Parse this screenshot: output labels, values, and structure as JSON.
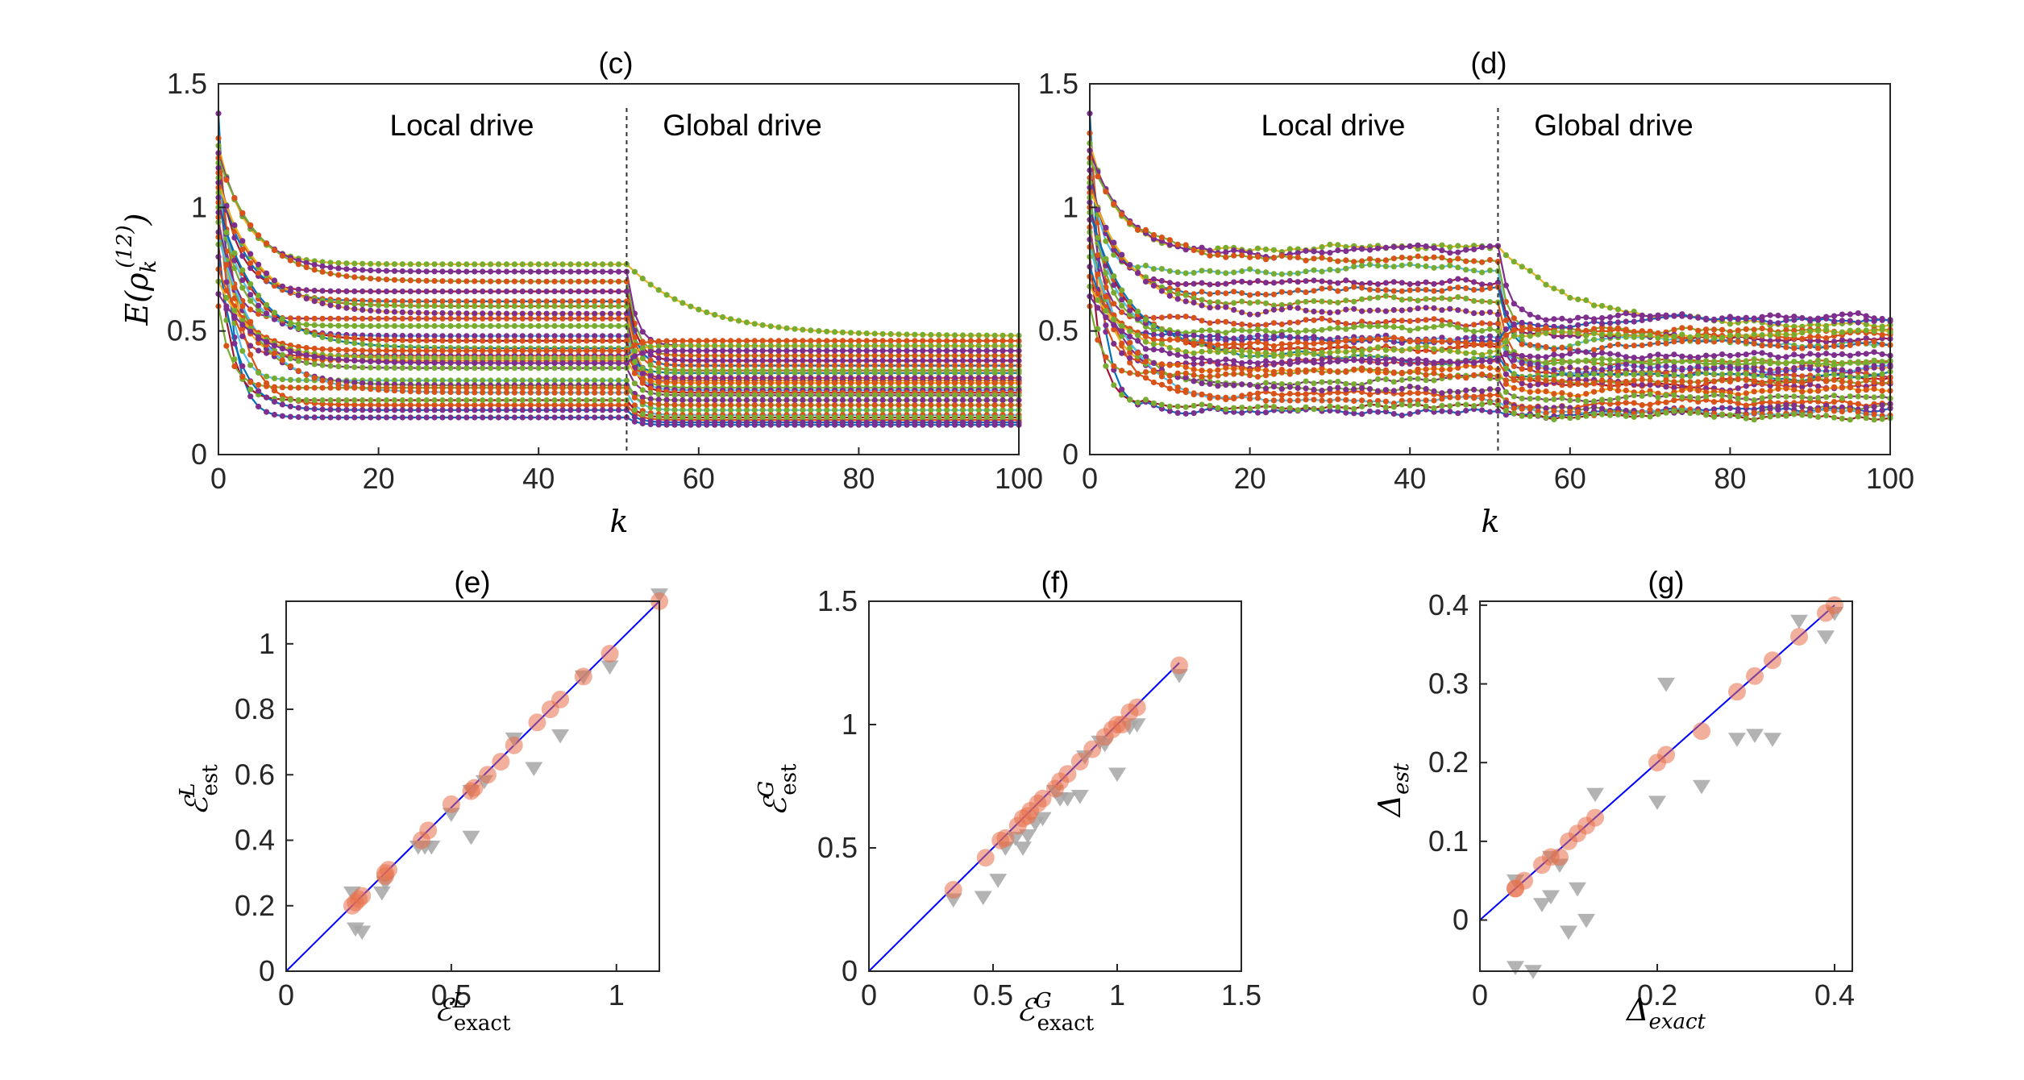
{
  "figure": {
    "panels_top": [
      {
        "id": "c",
        "title": "(c)",
        "ylabel_main": "E(ρ",
        "ylabel_sub": "k",
        "ylabel_sup": "(12)",
        "ylabel_close": ")",
        "xlabel": "k",
        "xlim": [
          0,
          100
        ],
        "ylim": [
          0,
          1.5
        ],
        "xticks": [
          "0",
          "20",
          "40",
          "60",
          "80",
          "100"
        ],
        "yticks": [
          "0",
          "0.5",
          "1",
          "1.5"
        ],
        "annotation_left": "Local drive",
        "annotation_right": "Global drive",
        "divider_at": 51
      },
      {
        "id": "d",
        "title": "(d)",
        "xlabel": "k",
        "xlim": [
          0,
          100
        ],
        "ylim": [
          0,
          1.5
        ],
        "xticks": [
          "0",
          "20",
          "40",
          "60",
          "80",
          "100"
        ],
        "yticks": [
          "0",
          "0.5",
          "1",
          "1.5"
        ],
        "annotation_left": "Local drive",
        "annotation_right": "Global drive",
        "divider_at": 51
      }
    ],
    "panels_bottom": [
      {
        "id": "e",
        "title": "(e)",
        "xlabel_main": "ℰ",
        "xlabel_sup": "L",
        "xlabel_sub": "exact",
        "ylabel_main": "ℰ",
        "ylabel_sup": "L",
        "ylabel_sub": "est",
        "xticks": [
          "0",
          "0.5",
          "1"
        ],
        "yticks": [
          "0",
          "0.2",
          "0.4",
          "0.6",
          "0.8",
          "1"
        ]
      },
      {
        "id": "f",
        "title": "(f)",
        "xlabel_main": "ℰ",
        "xlabel_sup": "G",
        "xlabel_sub": "exact",
        "ylabel_main": "ℰ",
        "ylabel_sup": "G",
        "ylabel_sub": "est",
        "xticks": [
          "0",
          "0.5",
          "1",
          "1.5"
        ],
        "yticks": [
          "0",
          "0.5",
          "1",
          "1.5"
        ]
      },
      {
        "id": "g",
        "title": "(g)",
        "xlabel_main": "Δ",
        "xlabel_sub": "exact",
        "ylabel_main": "Δ",
        "ylabel_sub": "est",
        "xticks": [
          "0",
          "0.2",
          "0.4"
        ],
        "yticks": [
          "0",
          "0.1",
          "0.2",
          "0.3",
          "0.4"
        ]
      }
    ]
  },
  "chart_data": [
    {
      "id": "c",
      "type": "line",
      "title": "(c)",
      "xlabel": "k",
      "ylabel": "E(ρ_k^(12))",
      "xlim": [
        0,
        100
      ],
      "ylim": [
        0,
        1.5
      ],
      "x_range": [
        0,
        100
      ],
      "break_at": 51,
      "legend": "none",
      "colors": [
        "#0072BD",
        "#D95319",
        "#EDB120",
        "#7E2F8E",
        "#77AC30",
        "#4DBEEE",
        "#A2142F"
      ],
      "series": [
        {
          "start": 1.38,
          "local": 0.15,
          "global": 0.12
        },
        {
          "start": 1.28,
          "local": 0.2,
          "global": 0.14
        },
        {
          "start": 1.25,
          "local": 0.77,
          "global": 0.48,
          "late_drop": true
        },
        {
          "start": 1.22,
          "local": 0.74,
          "global": 0.44
        },
        {
          "start": 1.2,
          "local": 0.7,
          "global": 0.4
        },
        {
          "start": 1.18,
          "local": 0.3,
          "global": 0.18
        },
        {
          "start": 1.16,
          "local": 0.66,
          "global": 0.38
        },
        {
          "start": 1.14,
          "local": 0.62,
          "global": 0.36
        },
        {
          "start": 1.12,
          "local": 0.6,
          "global": 0.34
        },
        {
          "start": 1.1,
          "local": 0.57,
          "global": 0.3
        },
        {
          "start": 1.08,
          "local": 0.55,
          "global": 0.29
        },
        {
          "start": 1.06,
          "local": 0.52,
          "global": 0.27
        },
        {
          "start": 1.04,
          "local": 0.48,
          "global": 0.26
        },
        {
          "start": 1.02,
          "local": 0.46,
          "global": 0.25
        },
        {
          "start": 1.0,
          "local": 0.43,
          "global": 0.33
        },
        {
          "start": 0.98,
          "local": 0.4,
          "global": 0.31
        },
        {
          "start": 0.96,
          "local": 0.38,
          "global": 0.29
        },
        {
          "start": 0.94,
          "local": 0.35,
          "global": 0.24
        },
        {
          "start": 0.9,
          "local": 0.28,
          "global": 0.22
        },
        {
          "start": 0.88,
          "local": 0.25,
          "global": 0.16
        },
        {
          "start": 0.85,
          "local": 0.22,
          "global": 0.15
        },
        {
          "start": 0.8,
          "local": 0.18,
          "global": 0.13
        },
        {
          "start": 0.75,
          "local": 0.42,
          "global": 0.46
        },
        {
          "start": 0.7,
          "local": 0.39,
          "global": 0.44
        },
        {
          "start": 0.65,
          "local": 0.37,
          "global": 0.42
        },
        {
          "start": 0.6,
          "local": 0.27,
          "global": 0.2
        }
      ]
    },
    {
      "id": "d",
      "type": "line",
      "title": "(d)",
      "xlabel": "k",
      "ylabel": "",
      "xlim": [
        0,
        100
      ],
      "ylim": [
        0,
        1.5
      ],
      "x_range": [
        0,
        100
      ],
      "break_at": 51,
      "noise": 0.02,
      "legend": "none",
      "colors": [
        "#0072BD",
        "#D95319",
        "#EDB120",
        "#7E2F8E",
        "#77AC30",
        "#4DBEEE",
        "#A2142F"
      ],
      "series": [
        {
          "start": 1.38,
          "local": 0.18,
          "global": 0.17
        },
        {
          "start": 1.3,
          "local": 0.24,
          "global": 0.2
        },
        {
          "start": 1.26,
          "local": 0.84,
          "global": 0.52,
          "late_drop": true
        },
        {
          "start": 1.23,
          "local": 0.82,
          "global": 0.56
        },
        {
          "start": 1.2,
          "local": 0.78,
          "global": 0.5
        },
        {
          "start": 1.18,
          "local": 0.75,
          "global": 0.45
        },
        {
          "start": 1.15,
          "local": 0.7,
          "global": 0.47
        },
        {
          "start": 1.12,
          "local": 0.66,
          "global": 0.44
        },
        {
          "start": 1.1,
          "local": 0.62,
          "global": 0.38
        },
        {
          "start": 1.08,
          "local": 0.58,
          "global": 0.35
        },
        {
          "start": 1.06,
          "local": 0.54,
          "global": 0.33
        },
        {
          "start": 1.04,
          "local": 0.5,
          "global": 0.37
        },
        {
          "start": 1.02,
          "local": 0.46,
          "global": 0.34
        },
        {
          "start": 1.0,
          "local": 0.43,
          "global": 0.3
        },
        {
          "start": 0.98,
          "local": 0.4,
          "global": 0.32
        },
        {
          "start": 0.95,
          "local": 0.37,
          "global": 0.28
        },
        {
          "start": 0.92,
          "local": 0.34,
          "global": 0.25
        },
        {
          "start": 0.9,
          "local": 0.3,
          "global": 0.22
        },
        {
          "start": 0.87,
          "local": 0.27,
          "global": 0.19
        },
        {
          "start": 0.84,
          "local": 0.22,
          "global": 0.18
        },
        {
          "start": 0.8,
          "local": 0.2,
          "global": 0.16
        },
        {
          "start": 0.76,
          "local": 0.47,
          "global": 0.54
        },
        {
          "start": 0.72,
          "local": 0.45,
          "global": 0.5
        },
        {
          "start": 0.68,
          "local": 0.42,
          "global": 0.48
        },
        {
          "start": 0.64,
          "local": 0.38,
          "global": 0.4
        },
        {
          "start": 0.6,
          "local": 0.32,
          "global": 0.3
        }
      ]
    },
    {
      "id": "e",
      "type": "scatter",
      "title": "(e)",
      "xlabel": "ℰ^L_exact",
      "ylabel": "ℰ^L_est",
      "xlim": [
        0,
        1.13
      ],
      "ylim": [
        0,
        1.13
      ],
      "reference_line": [
        [
          0,
          0
        ],
        [
          1.13,
          1.13
        ]
      ],
      "circles": [
        [
          0.2,
          0.2
        ],
        [
          0.21,
          0.21
        ],
        [
          0.22,
          0.22
        ],
        [
          0.23,
          0.23
        ],
        [
          0.3,
          0.29
        ],
        [
          0.3,
          0.3
        ],
        [
          0.31,
          0.31
        ],
        [
          0.41,
          0.4
        ],
        [
          0.43,
          0.43
        ],
        [
          0.5,
          0.51
        ],
        [
          0.56,
          0.55
        ],
        [
          0.57,
          0.56
        ],
        [
          0.61,
          0.6
        ],
        [
          0.65,
          0.64
        ],
        [
          0.69,
          0.69
        ],
        [
          0.76,
          0.76
        ],
        [
          0.8,
          0.8
        ],
        [
          0.83,
          0.83
        ],
        [
          0.9,
          0.9
        ],
        [
          0.98,
          0.97
        ],
        [
          1.13,
          1.13
        ]
      ],
      "triangles": [
        [
          0.2,
          0.24
        ],
        [
          0.21,
          0.13
        ],
        [
          0.23,
          0.12
        ],
        [
          0.29,
          0.24
        ],
        [
          0.3,
          0.27
        ],
        [
          0.4,
          0.38
        ],
        [
          0.42,
          0.38
        ],
        [
          0.44,
          0.38
        ],
        [
          0.5,
          0.48
        ],
        [
          0.56,
          0.55
        ],
        [
          0.56,
          0.41
        ],
        [
          0.6,
          0.58
        ],
        [
          0.69,
          0.71
        ],
        [
          0.75,
          0.62
        ],
        [
          0.83,
          0.72
        ],
        [
          0.9,
          0.9
        ],
        [
          0.98,
          0.93
        ],
        [
          1.13,
          1.15
        ]
      ]
    },
    {
      "id": "f",
      "type": "scatter",
      "title": "(f)",
      "xlabel": "ℰ^G_exact",
      "ylabel": "ℰ^G_est",
      "xlim": [
        0,
        1.5
      ],
      "ylim": [
        0,
        1.5
      ],
      "reference_line": [
        [
          0,
          0
        ],
        [
          1.25,
          1.25
        ]
      ],
      "circles": [
        [
          0.34,
          0.33
        ],
        [
          0.47,
          0.46
        ],
        [
          0.53,
          0.53
        ],
        [
          0.55,
          0.54
        ],
        [
          0.6,
          0.59
        ],
        [
          0.62,
          0.62
        ],
        [
          0.64,
          0.63
        ],
        [
          0.65,
          0.65
        ],
        [
          0.68,
          0.68
        ],
        [
          0.7,
          0.7
        ],
        [
          0.75,
          0.74
        ],
        [
          0.77,
          0.77
        ],
        [
          0.8,
          0.8
        ],
        [
          0.85,
          0.85
        ],
        [
          0.9,
          0.9
        ],
        [
          0.95,
          0.95
        ],
        [
          0.98,
          0.98
        ],
        [
          1.0,
          1.0
        ],
        [
          1.02,
          1.0
        ],
        [
          1.05,
          1.05
        ],
        [
          1.08,
          1.07
        ],
        [
          1.25,
          1.24
        ]
      ],
      "triangles": [
        [
          0.34,
          0.29
        ],
        [
          0.46,
          0.3
        ],
        [
          0.52,
          0.37
        ],
        [
          0.55,
          0.5
        ],
        [
          0.59,
          0.54
        ],
        [
          0.62,
          0.5
        ],
        [
          0.64,
          0.55
        ],
        [
          0.67,
          0.6
        ],
        [
          0.7,
          0.62
        ],
        [
          0.75,
          0.73
        ],
        [
          0.77,
          0.7
        ],
        [
          0.8,
          0.7
        ],
        [
          0.85,
          0.71
        ],
        [
          0.87,
          0.87
        ],
        [
          0.93,
          0.93
        ],
        [
          0.95,
          0.92
        ],
        [
          1.0,
          0.8
        ],
        [
          1.05,
          0.99
        ],
        [
          1.08,
          1.0
        ],
        [
          1.25,
          1.2
        ]
      ]
    },
    {
      "id": "g",
      "type": "scatter",
      "title": "(g)",
      "xlabel": "Δ_exact",
      "ylabel": "Δ_est",
      "xlim": [
        0,
        0.42
      ],
      "ylim": [
        -0.065,
        0.405
      ],
      "reference_line": [
        [
          0,
          0
        ],
        [
          0.4,
          0.4
        ]
      ],
      "circles": [
        [
          0.04,
          0.04
        ],
        [
          0.04,
          0.04
        ],
        [
          0.05,
          0.05
        ],
        [
          0.07,
          0.07
        ],
        [
          0.08,
          0.08
        ],
        [
          0.09,
          0.08
        ],
        [
          0.1,
          0.1
        ],
        [
          0.11,
          0.11
        ],
        [
          0.12,
          0.12
        ],
        [
          0.13,
          0.13
        ],
        [
          0.2,
          0.2
        ],
        [
          0.21,
          0.21
        ],
        [
          0.25,
          0.24
        ],
        [
          0.29,
          0.29
        ],
        [
          0.31,
          0.31
        ],
        [
          0.33,
          0.33
        ],
        [
          0.36,
          0.36
        ],
        [
          0.39,
          0.39
        ],
        [
          0.4,
          0.4
        ]
      ],
      "triangles": [
        [
          0.04,
          0.05
        ],
        [
          0.04,
          -0.06
        ],
        [
          0.06,
          -0.065
        ],
        [
          0.07,
          0.02
        ],
        [
          0.08,
          0.08
        ],
        [
          0.08,
          0.03
        ],
        [
          0.09,
          0.07
        ],
        [
          0.1,
          -0.015
        ],
        [
          0.11,
          0.04
        ],
        [
          0.12,
          0.0
        ],
        [
          0.13,
          0.16
        ],
        [
          0.2,
          0.15
        ],
        [
          0.21,
          0.3
        ],
        [
          0.25,
          0.17
        ],
        [
          0.29,
          0.23
        ],
        [
          0.31,
          0.235
        ],
        [
          0.33,
          0.23
        ],
        [
          0.36,
          0.38
        ],
        [
          0.39,
          0.36
        ],
        [
          0.4,
          0.39
        ]
      ]
    }
  ]
}
